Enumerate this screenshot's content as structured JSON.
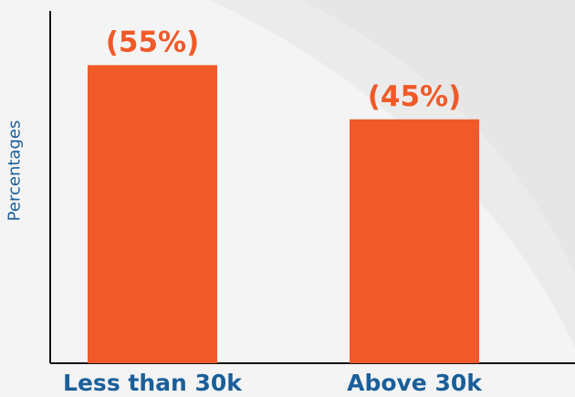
{
  "chart_data": {
    "type": "bar",
    "categories": [
      "Less than 30k",
      "Above 30k"
    ],
    "values": [
      55,
      45
    ],
    "data_labels": [
      "(55%)",
      "(45%)"
    ],
    "title": "",
    "xlabel": "",
    "ylabel": "Percentages",
    "ylim": [
      0,
      65
    ],
    "grid": false,
    "colors": {
      "bar": "#f05a28",
      "data_label": "#f05a28",
      "category_label": "#1a5f9a",
      "axis_label": "#1a5f9a",
      "axis_line": "#111111",
      "background": "#f4f4f4"
    }
  }
}
